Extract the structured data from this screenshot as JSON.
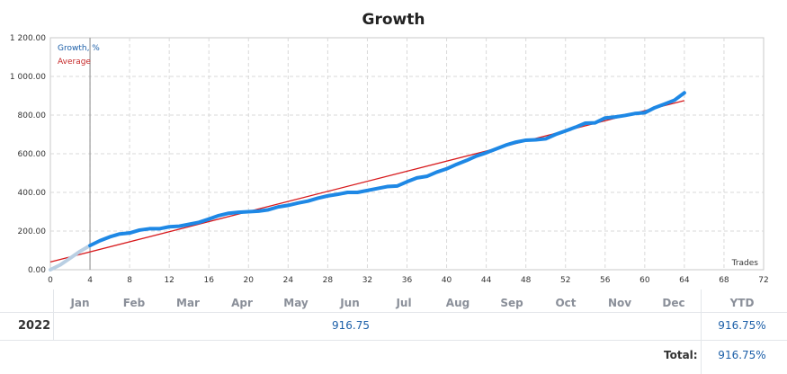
{
  "chart_data": {
    "type": "line",
    "title": "Growth",
    "xlabel": "Trades",
    "ylabel": "",
    "xlim": [
      0,
      72
    ],
    "ylim": [
      0,
      1200
    ],
    "x_ticks": [
      0,
      4,
      8,
      12,
      16,
      20,
      24,
      28,
      32,
      36,
      40,
      44,
      48,
      52,
      56,
      60,
      64,
      68,
      72
    ],
    "y_ticks": [
      {
        "value": 0,
        "label": "0.00"
      },
      {
        "value": 200,
        "label": "200.00"
      },
      {
        "value": 400,
        "label": "400.00"
      },
      {
        "value": 600,
        "label": "600.00"
      },
      {
        "value": 800,
        "label": "800.00"
      },
      {
        "value": 1000,
        "label": "1 000.00"
      },
      {
        "value": 1200,
        "label": "1 200.00"
      }
    ],
    "grid": true,
    "legend_position": "top-left",
    "start_marker_x": 4,
    "series": [
      {
        "name": "Growth, %",
        "color": "#1e88e5",
        "pre_color": "#b9cfe3",
        "x": [
          0,
          1,
          2,
          3,
          4,
          5,
          6,
          7,
          8,
          9,
          10,
          11,
          12,
          13,
          14,
          15,
          16,
          17,
          18,
          19,
          20,
          21,
          22,
          23,
          24,
          25,
          26,
          27,
          28,
          29,
          30,
          31,
          32,
          33,
          34,
          35,
          36,
          37,
          38,
          39,
          40,
          41,
          42,
          43,
          44,
          45,
          46,
          47,
          48,
          49,
          50,
          51,
          52,
          53,
          54,
          55,
          56,
          57,
          58,
          59,
          60,
          61,
          62,
          63,
          64
        ],
        "values": [
          0,
          25,
          60,
          95,
          125,
          150,
          170,
          185,
          190,
          205,
          212,
          212,
          222,
          225,
          235,
          245,
          262,
          280,
          292,
          297,
          300,
          303,
          310,
          325,
          333,
          345,
          355,
          370,
          382,
          390,
          400,
          400,
          410,
          420,
          430,
          433,
          455,
          475,
          483,
          505,
          522,
          545,
          565,
          588,
          605,
          625,
          645,
          660,
          670,
          672,
          677,
          700,
          718,
          737,
          758,
          760,
          785,
          790,
          798,
          808,
          812,
          838,
          857,
          877,
          915
        ]
      },
      {
        "name": "Average",
        "color": "#d7191c",
        "x": [
          0,
          64
        ],
        "values": [
          40,
          875
        ]
      }
    ]
  },
  "months": [
    "Jan",
    "Feb",
    "Mar",
    "Apr",
    "May",
    "Jun",
    "Jul",
    "Aug",
    "Sep",
    "Oct",
    "Nov",
    "Dec"
  ],
  "ytd_header": "YTD",
  "row": {
    "year": "2022",
    "value": "916.75",
    "ytd": "916.75%"
  },
  "total": {
    "label": "Total:",
    "value": "916.75%"
  }
}
